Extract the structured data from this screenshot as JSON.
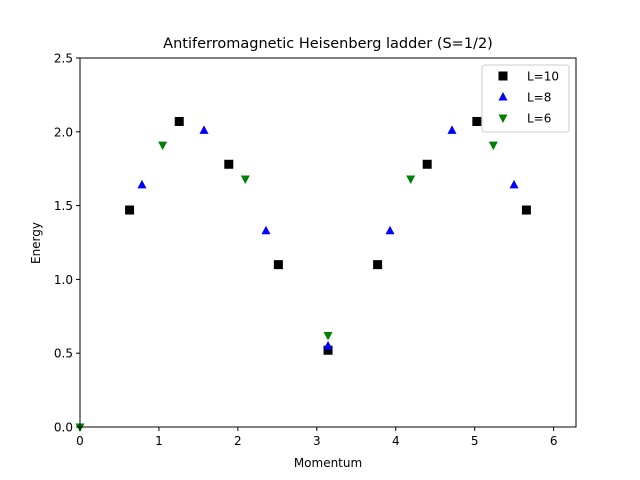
{
  "chart_data": {
    "type": "scatter",
    "title": "Antiferromagnetic Heisenberg ladder (S=1/2)",
    "xlabel": "Momentum",
    "ylabel": "Energy",
    "xlim": [
      0,
      6.2832
    ],
    "ylim": [
      0,
      2.5
    ],
    "xticks": [
      0,
      1,
      2,
      3,
      4,
      5,
      6
    ],
    "xtick_labels": [
      "0",
      "1",
      "2",
      "3",
      "4",
      "5",
      "6"
    ],
    "yticks": [
      0.0,
      0.5,
      1.0,
      1.5,
      2.0,
      2.5
    ],
    "ytick_labels": [
      "0.0",
      "0.5",
      "1.0",
      "1.5",
      "2.0",
      "2.5"
    ],
    "grid": false,
    "legend_position": "upper right",
    "series": [
      {
        "name": "L=10",
        "marker": "square",
        "color": "#000000",
        "x": [
          0.628,
          1.257,
          1.885,
          2.513,
          3.142,
          3.77,
          4.398,
          5.027,
          5.655
        ],
        "y": [
          1.47,
          2.07,
          1.78,
          1.1,
          0.52,
          1.1,
          1.78,
          2.07,
          1.47
        ]
      },
      {
        "name": "L=8",
        "marker": "triangle-up",
        "color": "#0000ff",
        "x": [
          0.785,
          1.571,
          2.356,
          3.142,
          3.927,
          4.712,
          5.498
        ],
        "y": [
          1.64,
          2.01,
          1.33,
          0.55,
          1.33,
          2.01,
          1.64
        ]
      },
      {
        "name": "L=6",
        "marker": "triangle-down",
        "color": "#008000",
        "x": [
          0.0,
          1.047,
          2.094,
          3.142,
          4.189,
          5.236
        ],
        "y": [
          0.0,
          1.91,
          1.68,
          0.62,
          1.68,
          1.91
        ]
      }
    ]
  }
}
